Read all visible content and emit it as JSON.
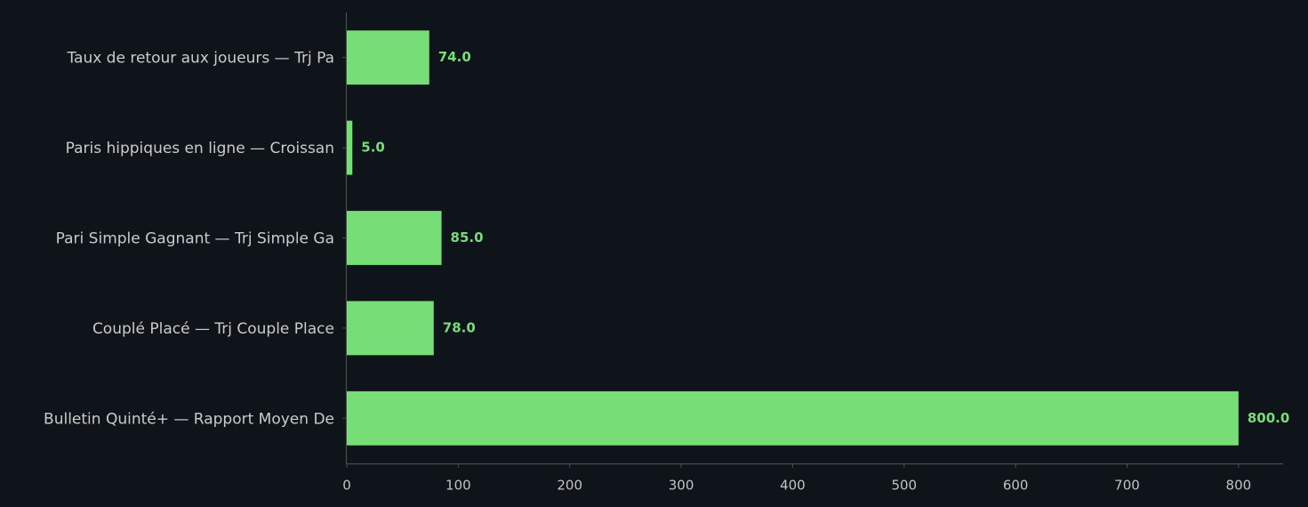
{
  "chart_data": {
    "type": "barh",
    "categories": [
      "Taux de retour aux joueurs — Trj Pa",
      "Paris hippiques en ligne — Croissan",
      "Pari Simple Gagnant — Trj Simple Ga",
      "Couplé Placé — Trj Couple Place",
      "Bulletin Quinté+ — Rapport Moyen De"
    ],
    "values": [
      74,
      5,
      85,
      78,
      800
    ],
    "value_labels": [
      "74.0",
      "5.0",
      "85.0",
      "78.0",
      "800.0"
    ],
    "color": "#77dd77",
    "xlim": [
      0,
      840
    ],
    "xticks": [
      0,
      100,
      200,
      300,
      400,
      500,
      600,
      700,
      800
    ],
    "grid": false
  }
}
